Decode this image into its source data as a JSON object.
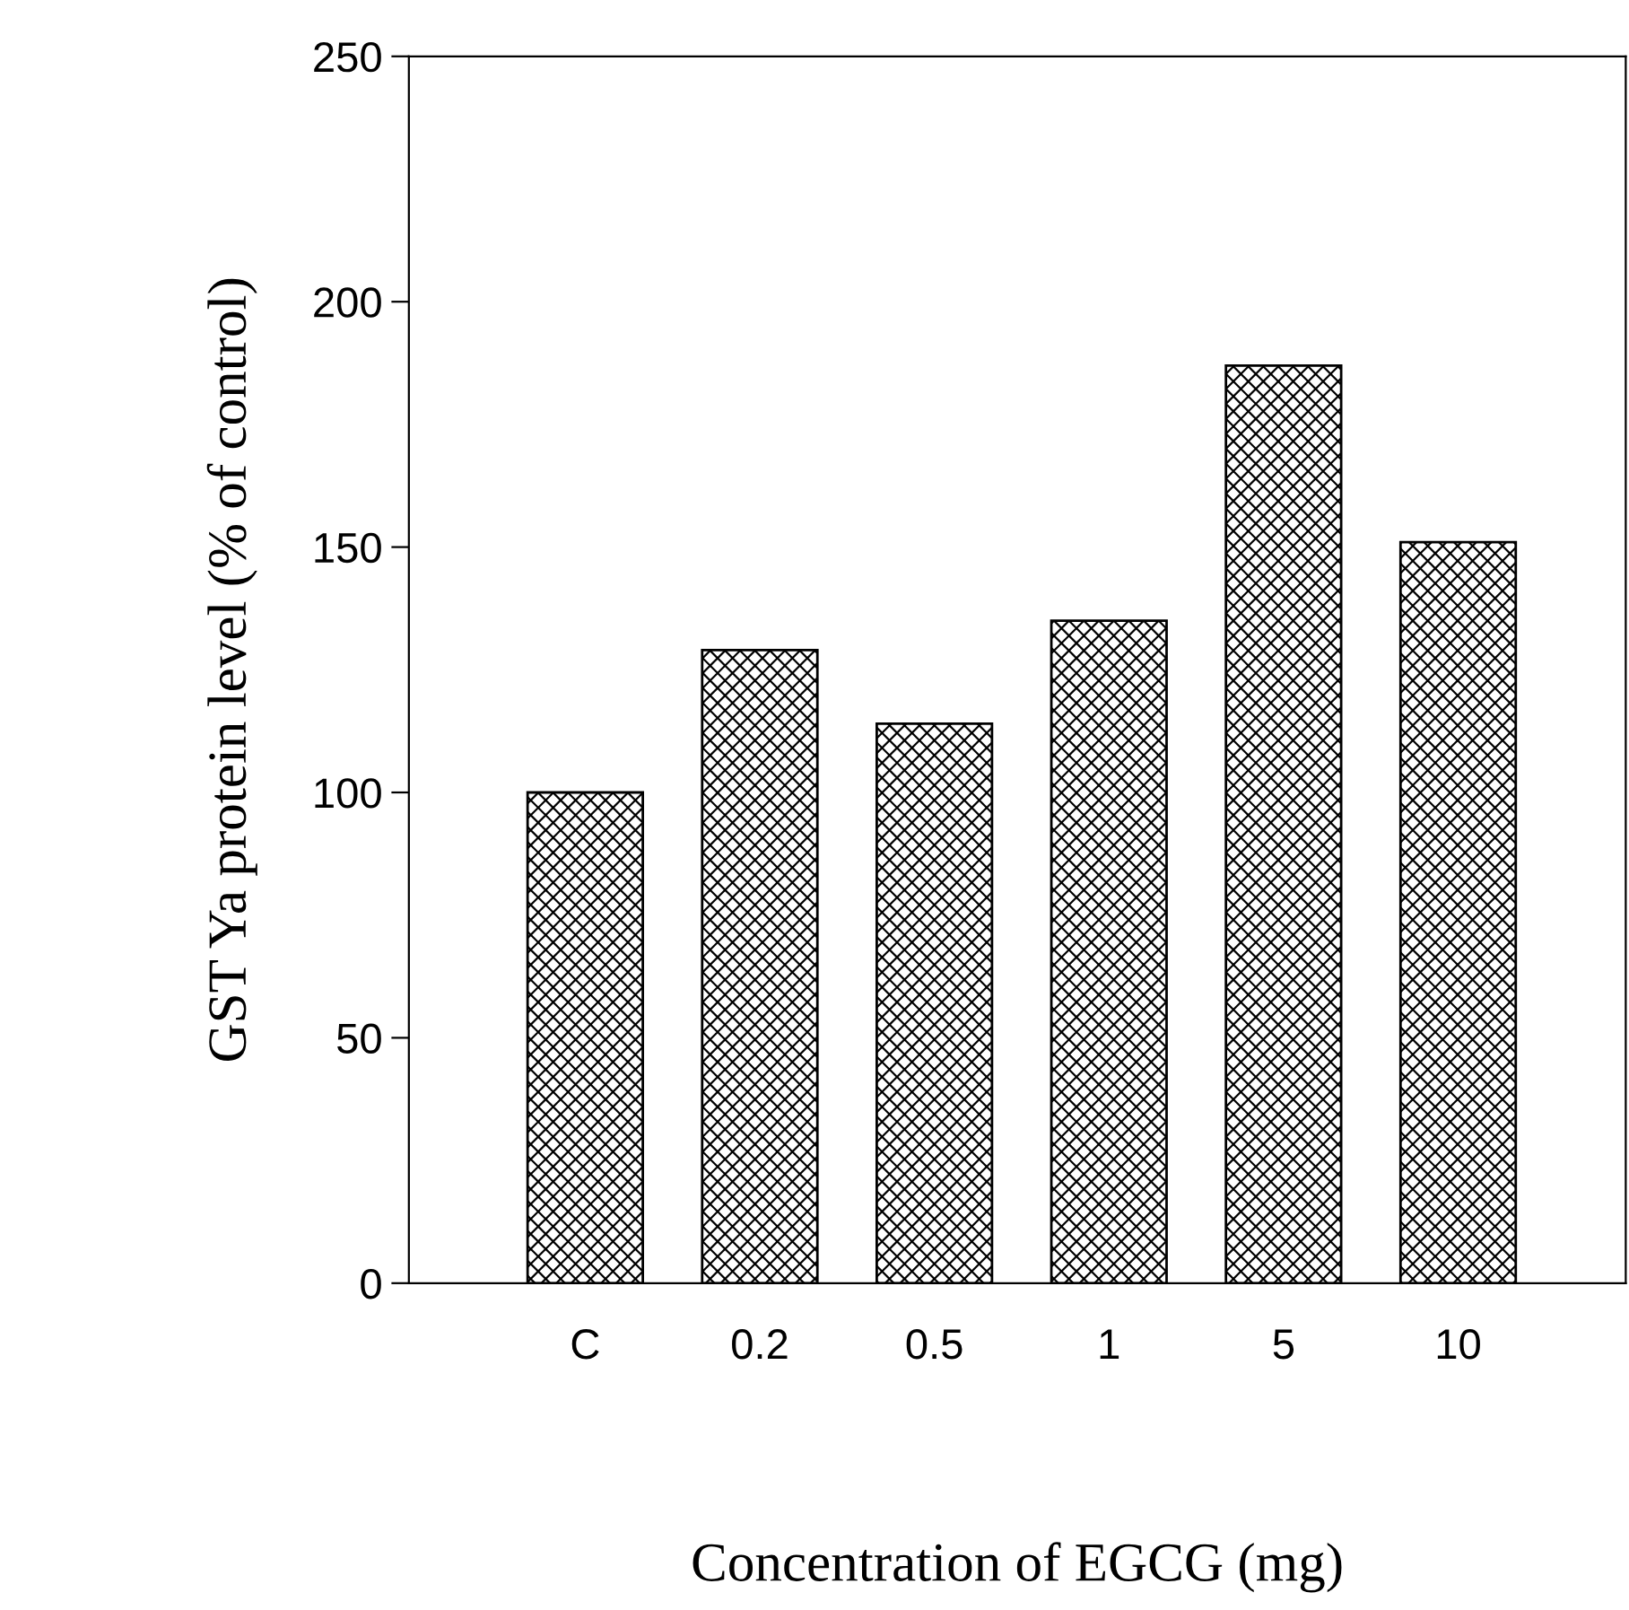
{
  "chart_data": {
    "type": "bar",
    "xlabel": "Concentration of EGCG (mg)",
    "ylabel": "GST Ya protein level (% of control)",
    "categories": [
      "C",
      "0.2",
      "0.5",
      "1",
      "5",
      "10"
    ],
    "values": [
      100,
      129,
      114,
      135,
      187,
      151
    ],
    "color": "#000000",
    "ylim": [
      0,
      250
    ],
    "yticks": [
      0,
      50,
      100,
      150,
      200,
      250
    ],
    "grid": false,
    "legend": false
  }
}
